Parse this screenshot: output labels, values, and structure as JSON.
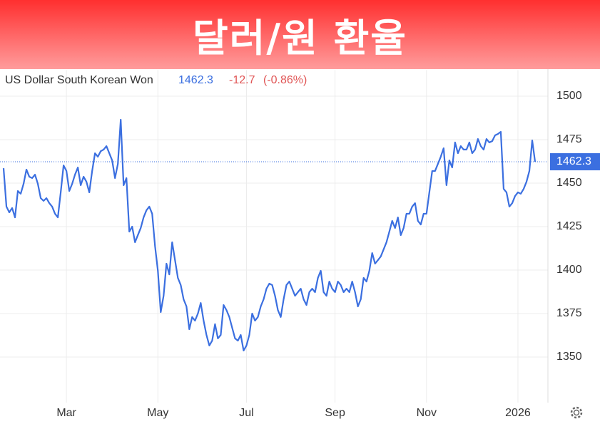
{
  "chart_data": {
    "type": "line",
    "title": "달러/원 환율",
    "change": "-12.7",
    "change_pct": "(-0.86%)",
    "series": [
      {
        "name": "US Dollar South Korean Won",
        "color": "#3b6fe0",
        "values": [
          1458.6,
          1436.5,
          1433.2,
          1435.7,
          1430.3,
          1445.5,
          1443.9,
          1449.6,
          1457.8,
          1453.7,
          1452.9,
          1454.9,
          1449.6,
          1441.4,
          1439.8,
          1441.4,
          1438.5,
          1436.5,
          1432.4,
          1430.3,
          1444.7,
          1460.2,
          1457.0,
          1445.5,
          1449.6,
          1454.9,
          1459.0,
          1448.8,
          1453.7,
          1450.8,
          1444.7,
          1457.0,
          1467.2,
          1465.2,
          1468.4,
          1469.3,
          1471.3,
          1467.2,
          1463.1,
          1452.9,
          1461.1,
          1486.5,
          1448.8,
          1452.9,
          1422.1,
          1425.0,
          1416.0,
          1420.1,
          1424.2,
          1430.3,
          1434.4,
          1436.5,
          1432.4,
          1413.9,
          1399.6,
          1375.8,
          1385.2,
          1403.7,
          1397.5,
          1416.0,
          1405.7,
          1395.5,
          1391.4,
          1383.2,
          1379.1,
          1366.0,
          1373.0,
          1370.9,
          1375.0,
          1381.1,
          1370.9,
          1362.7,
          1356.6,
          1359.4,
          1368.9,
          1360.7,
          1362.7,
          1379.9,
          1377.0,
          1373.0,
          1366.8,
          1360.7,
          1359.4,
          1362.7,
          1353.7,
          1356.6,
          1362.7,
          1375.0,
          1370.9,
          1373.0,
          1379.1,
          1383.2,
          1389.3,
          1392.2,
          1391.4,
          1385.2,
          1377.0,
          1373.0,
          1383.2,
          1391.4,
          1393.4,
          1389.3,
          1385.2,
          1387.3,
          1389.3,
          1383.2,
          1379.9,
          1387.3,
          1389.3,
          1387.3,
          1395.5,
          1399.6,
          1387.3,
          1385.2,
          1393.4,
          1389.3,
          1387.3,
          1393.4,
          1391.4,
          1387.3,
          1389.3,
          1387.3,
          1393.4,
          1387.3,
          1379.1,
          1383.2,
          1395.5,
          1393.4,
          1399.6,
          1409.8,
          1403.7,
          1405.7,
          1407.8,
          1411.9,
          1416.0,
          1422.1,
          1428.3,
          1424.2,
          1430.3,
          1420.1,
          1424.2,
          1432.4,
          1432.4,
          1436.5,
          1438.5,
          1428.3,
          1426.2,
          1432.4,
          1432.4,
          1444.7,
          1457.0,
          1457.0,
          1461.1,
          1465.2,
          1470.1,
          1448.8,
          1463.1,
          1459.0,
          1473.4,
          1467.2,
          1471.3,
          1469.3,
          1469.3,
          1473.4,
          1467.2,
          1469.3,
          1475.4,
          1471.3,
          1469.3,
          1475.4,
          1473.4,
          1474.2,
          1477.5,
          1478.3,
          1479.5,
          1446.7,
          1444.7,
          1436.5,
          1438.5,
          1442.6,
          1444.7,
          1443.9,
          1446.7,
          1450.8,
          1457.0,
          1474.6,
          1462.3
        ]
      }
    ],
    "xlim": [
      0,
      186
    ],
    "xticks": [
      {
        "value": 22,
        "label": "Mar"
      },
      {
        "value": 54,
        "label": "May"
      },
      {
        "value": 85,
        "label": "Jul"
      },
      {
        "value": 116,
        "label": "Sep"
      },
      {
        "value": 148,
        "label": "Nov"
      },
      {
        "value": 180,
        "label": "2026"
      }
    ],
    "ylim": [
      1325,
      1515
    ],
    "yticks": [
      1350,
      1375,
      1400,
      1425,
      1450,
      1475,
      1500
    ],
    "grid": true
  }
}
